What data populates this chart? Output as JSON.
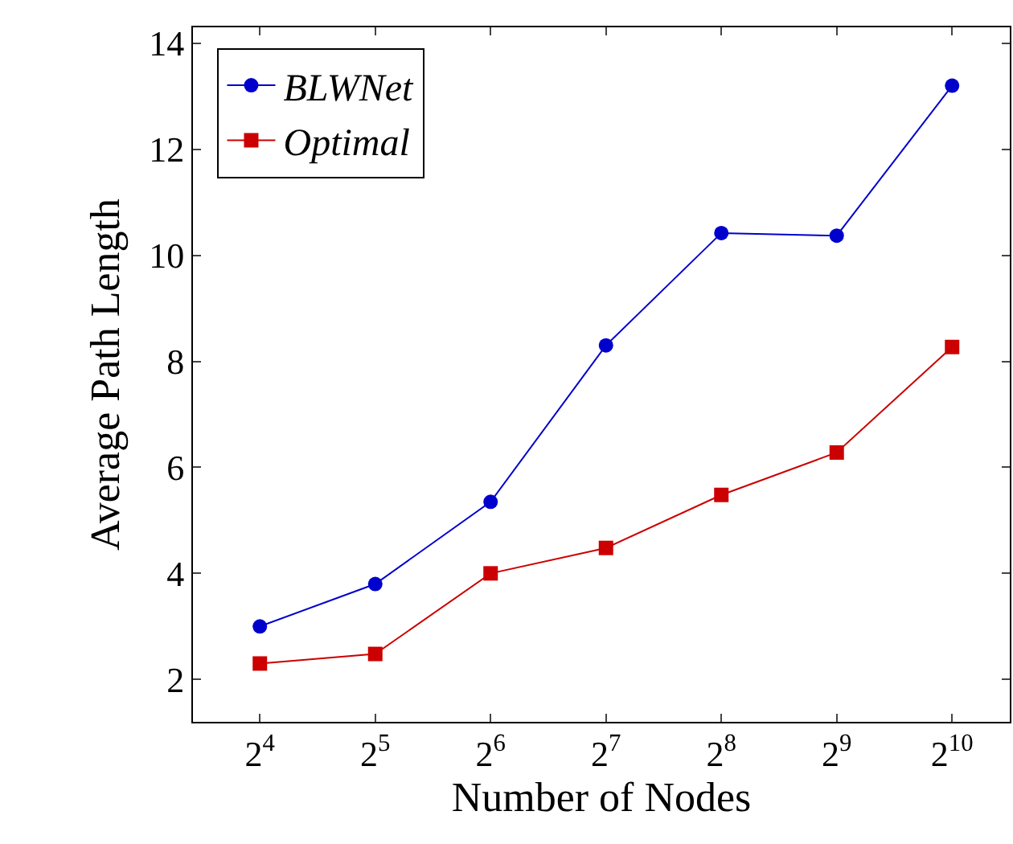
{
  "chart_data": {
    "type": "line",
    "xlabel": "Number of Nodes",
    "ylabel": "Average Path Length",
    "categories": [
      "2$^{4}$",
      "2$^{5}$",
      "2$^{6}$",
      "2$^{7}$",
      "2$^{8}$",
      "2$^{9}$",
      "2$^{10}$"
    ],
    "series": [
      {
        "name": "BLWNet",
        "color": "#0000cc",
        "marker": "circle",
        "values": [
          3.0,
          3.8,
          5.35,
          8.3,
          10.42,
          10.37,
          13.2
        ]
      },
      {
        "name": "Optimal",
        "color": "#cc0000",
        "marker": "square",
        "values": [
          2.3,
          2.48,
          4.0,
          4.48,
          5.48,
          6.28,
          8.27
        ]
      }
    ],
    "ylim": [
      1.2,
      14.3
    ],
    "yticks": [
      2,
      4,
      6,
      8,
      10,
      12,
      14
    ],
    "legend": "top left",
    "line_style": "solid"
  }
}
